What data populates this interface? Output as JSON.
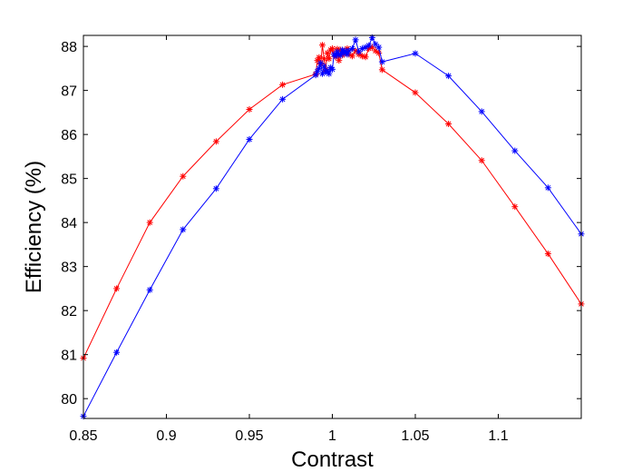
{
  "chart_data": {
    "type": "line",
    "title": "",
    "xlabel": "Contrast",
    "ylabel": "Efficiency (%)",
    "xlim": [
      0.85,
      1.15
    ],
    "ylim": [
      79.55,
      88.25
    ],
    "x_ticks": [
      0.85,
      0.9,
      0.95,
      1,
      1.05,
      1.1
    ],
    "x_tick_labels": [
      "0.85",
      "0.9",
      "0.95",
      "1",
      "1.05",
      "1.1"
    ],
    "y_ticks": [
      80,
      81,
      82,
      83,
      84,
      85,
      86,
      87,
      88
    ],
    "y_tick_labels": [
      "80",
      "81",
      "82",
      "83",
      "84",
      "85",
      "86",
      "87",
      "88"
    ],
    "grid": false,
    "legend": "none",
    "marker": "asterisk",
    "series": [
      {
        "color": "#ff0000",
        "x": [
          0.85,
          0.87,
          0.89,
          0.91,
          0.93,
          0.95,
          0.97,
          0.99,
          0.991,
          0.992,
          0.993,
          0.994,
          0.995,
          0.996,
          0.997,
          0.998,
          0.999,
          1.0,
          1.001,
          1.002,
          1.003,
          1.004,
          1.005,
          1.006,
          1.007,
          1.008,
          1.009,
          1.01,
          1.012,
          1.014,
          1.016,
          1.018,
          1.02,
          1.022,
          1.024,
          1.026,
          1.028,
          1.03,
          1.05,
          1.07,
          1.09,
          1.11,
          1.13,
          1.15
        ],
        "y": [
          80.92,
          82.5,
          84.0,
          85.05,
          85.84,
          86.57,
          87.13,
          87.37,
          87.68,
          87.75,
          87.6,
          88.03,
          87.72,
          87.48,
          87.85,
          87.72,
          87.92,
          87.95,
          87.82,
          87.76,
          87.94,
          87.68,
          87.92,
          87.8,
          87.88,
          87.85,
          87.95,
          87.82,
          87.78,
          87.9,
          87.82,
          87.78,
          87.76,
          87.95,
          87.98,
          87.9,
          87.85,
          87.47,
          86.95,
          86.24,
          85.41,
          84.36,
          83.29,
          82.15
        ]
      },
      {
        "color": "#0000ff",
        "x": [
          0.85,
          0.87,
          0.89,
          0.91,
          0.93,
          0.95,
          0.97,
          0.99,
          0.991,
          0.992,
          0.993,
          0.994,
          0.995,
          0.996,
          0.997,
          0.998,
          0.999,
          1.0,
          1.001,
          1.002,
          1.003,
          1.004,
          1.005,
          1.006,
          1.007,
          1.008,
          1.009,
          1.01,
          1.012,
          1.014,
          1.016,
          1.018,
          1.02,
          1.022,
          1.024,
          1.026,
          1.028,
          1.03,
          1.05,
          1.07,
          1.09,
          1.11,
          1.13,
          1.15
        ],
        "y": [
          79.6,
          81.05,
          82.47,
          83.84,
          84.77,
          85.89,
          86.8,
          87.35,
          87.43,
          87.5,
          87.62,
          87.38,
          87.55,
          87.42,
          87.45,
          87.38,
          87.52,
          87.48,
          87.82,
          87.78,
          87.88,
          87.82,
          87.8,
          87.92,
          87.85,
          87.9,
          87.82,
          87.9,
          87.95,
          88.15,
          87.88,
          87.95,
          87.98,
          88.02,
          88.2,
          88.05,
          87.98,
          87.65,
          87.84,
          87.33,
          86.52,
          85.63,
          84.79,
          83.74
        ]
      }
    ]
  }
}
